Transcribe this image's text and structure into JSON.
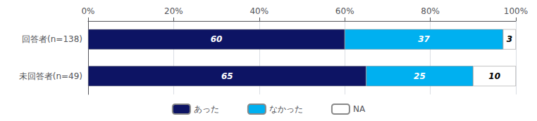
{
  "chart_data": {
    "type": "bar",
    "orientation": "horizontal",
    "stacked": true,
    "categories": [
      "回答者(n=138)",
      "未回答者(n=49)"
    ],
    "series": [
      {
        "name": "あった",
        "color": "#0d1464",
        "values": [
          60,
          65
        ]
      },
      {
        "name": "なかった",
        "color": "#00b0f0",
        "values": [
          37,
          25
        ]
      },
      {
        "name": "NA",
        "color": "#ffffff",
        "values": [
          3,
          10
        ]
      }
    ],
    "xlim": [
      0,
      100
    ],
    "xticks": [
      {
        "value": 0,
        "label": "0%"
      },
      {
        "value": 20,
        "label": "20%"
      },
      {
        "value": 40,
        "label": "40%"
      },
      {
        "value": 60,
        "label": "60%"
      },
      {
        "value": 80,
        "label": "80%"
      },
      {
        "value": 100,
        "label": "100%"
      }
    ],
    "grid": true,
    "legend": "bottom",
    "data_labels": true
  }
}
